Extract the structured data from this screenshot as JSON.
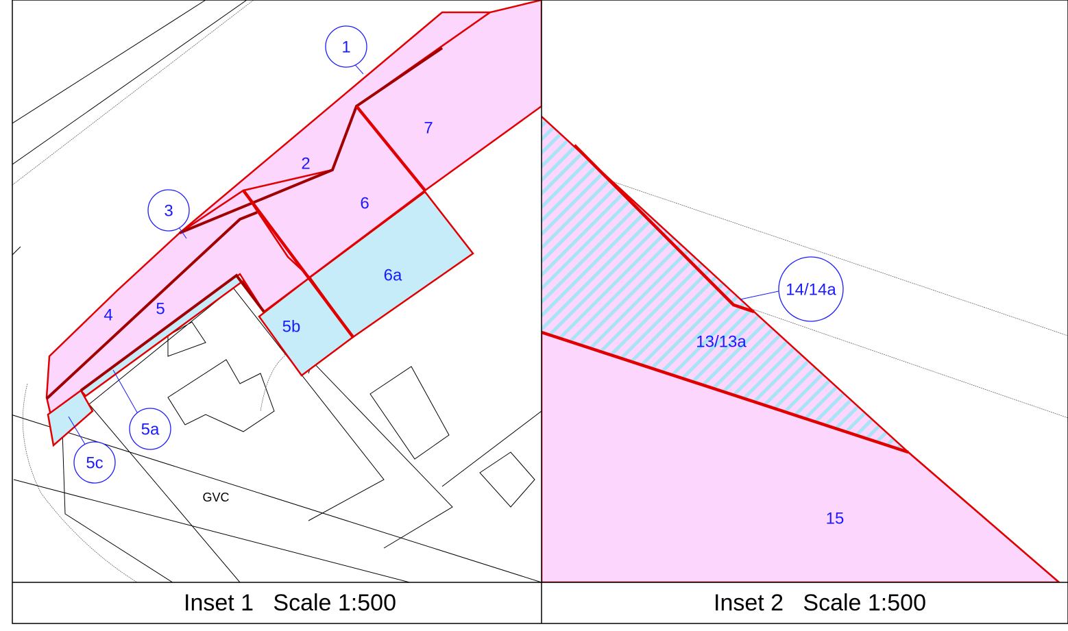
{
  "inset_1": {
    "caption": "Inset 1   Scale 1:500",
    "labels": [
      "1",
      "2",
      "3",
      "4",
      "5",
      "5a",
      "5b",
      "5c",
      "6",
      "6a",
      "7",
      "GVC"
    ]
  },
  "inset_2": {
    "caption": "Inset 2   Scale 1:500",
    "labels": [
      "14/14a",
      "13/13a",
      "15"
    ]
  }
}
